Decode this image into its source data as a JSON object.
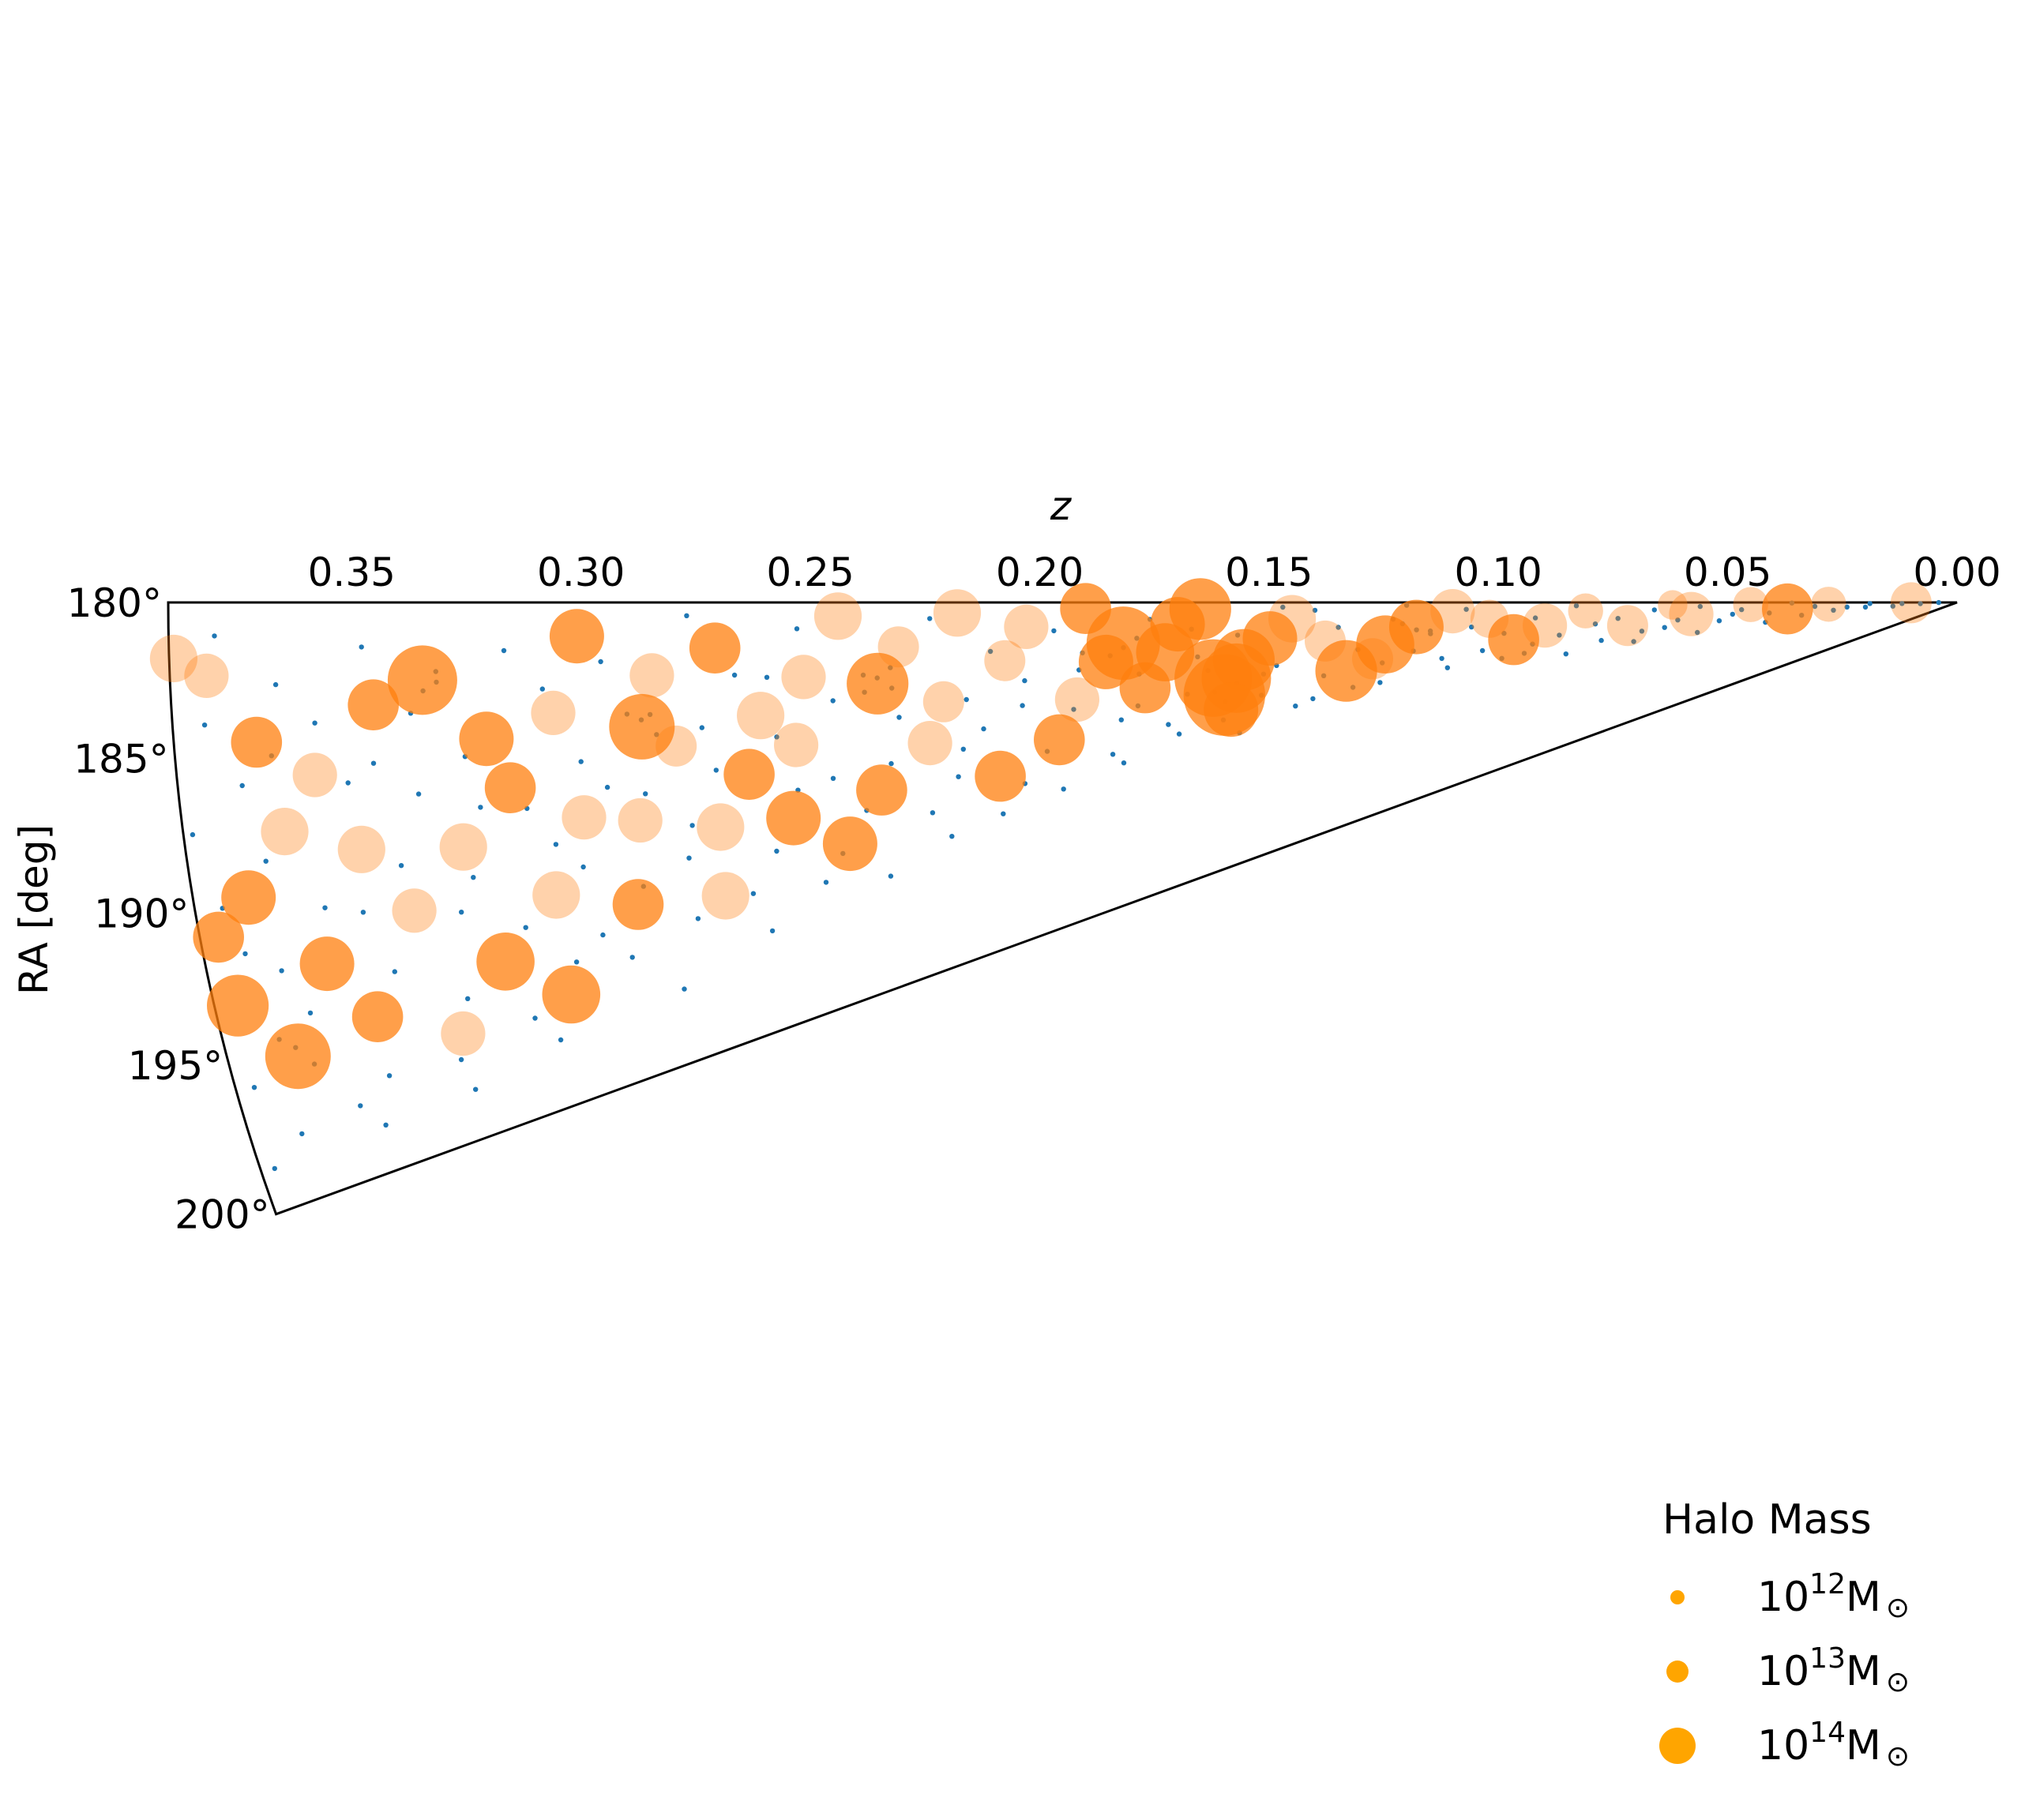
{
  "chart_data": {
    "type": "scatter",
    "projection": "polar-wedge",
    "xlabel": "z",
    "ylabel": "RA [deg]",
    "z_range": [
      0.0,
      0.39
    ],
    "ra_range": [
      180,
      200
    ],
    "z_ticks": [
      "0.35",
      "0.30",
      "0.25",
      "0.20",
      "0.15",
      "0.10",
      "0.05",
      "0.00"
    ],
    "ra_ticks": [
      "180°",
      "185°",
      "190°",
      "195°",
      "200°"
    ],
    "grid": false,
    "legend_position": "bottom-right",
    "legend": {
      "title": "Halo Mass",
      "entries": [
        {
          "base": "10",
          "exp": "12",
          "unit": "M",
          "sym": "⊙",
          "mass_exp": 12
        },
        {
          "base": "10",
          "exp": "13",
          "unit": "M",
          "sym": "⊙",
          "mass_exp": 13
        },
        {
          "base": "10",
          "exp": "14",
          "unit": "M",
          "sym": "⊙",
          "mass_exp": 14
        }
      ]
    },
    "colors": {
      "galaxies": "#1f77b4",
      "halos": "#ff7f0e",
      "legend_marker": "#ffa500"
    },
    "series": [
      {
        "kind": "halos",
        "points": [
          [
            0.01,
            180.4,
            13.2
          ],
          [
            0.028,
            180.8,
            13.0
          ],
          [
            0.037,
            182.2,
            13.5
          ],
          [
            0.045,
            180.6,
            13.0
          ],
          [
            0.058,
            182.5,
            13.3
          ],
          [
            0.062,
            180.5,
            12.8
          ],
          [
            0.072,
            184.0,
            13.2
          ],
          [
            0.081,
            181.3,
            13.0
          ],
          [
            0.09,
            183.2,
            13.3
          ],
          [
            0.097,
            184.8,
            13.5
          ],
          [
            0.102,
            182.0,
            13.1
          ],
          [
            0.11,
            181.0,
            13.3
          ],
          [
            0.118,
            182.6,
            13.6
          ],
          [
            0.125,
            184.2,
            13.7
          ],
          [
            0.128,
            185.5,
            13.2
          ],
          [
            0.134,
            186.4,
            13.8
          ],
          [
            0.138,
            183.5,
            13.2
          ],
          [
            0.145,
            181.4,
            13.4
          ],
          [
            0.15,
            183.0,
            13.6
          ],
          [
            0.156,
            184.6,
            13.8
          ],
          [
            0.158,
            186.0,
            14.0
          ],
          [
            0.161,
            187.2,
            14.3
          ],
          [
            0.163,
            185.8,
            14.2
          ],
          [
            0.16,
            188.4,
            13.6
          ],
          [
            0.165,
            180.5,
            13.8
          ],
          [
            0.17,
            181.6,
            13.6
          ],
          [
            0.173,
            183.6,
            13.7
          ],
          [
            0.178,
            186.0,
            13.5
          ],
          [
            0.182,
            182.8,
            14.1
          ],
          [
            0.186,
            184.0,
            13.6
          ],
          [
            0.19,
            180.4,
            13.5
          ],
          [
            0.193,
            186.3,
            13.3
          ],
          [
            0.198,
            188.7,
            13.5
          ],
          [
            0.203,
            181.5,
            13.3
          ],
          [
            0.208,
            183.5,
            13.2
          ],
          [
            0.212,
            190.3,
            13.5
          ],
          [
            0.218,
            180.6,
            13.4
          ],
          [
            0.222,
            185.6,
            13.2
          ],
          [
            0.226,
            187.8,
            13.3
          ],
          [
            0.231,
            182.4,
            13.2
          ],
          [
            0.236,
            184.3,
            13.8
          ],
          [
            0.238,
            189.9,
            13.5
          ],
          [
            0.244,
            180.7,
            13.4
          ],
          [
            0.247,
            192.3,
            13.6
          ],
          [
            0.252,
            183.7,
            13.3
          ],
          [
            0.255,
            187.0,
            13.3
          ],
          [
            0.258,
            190.5,
            13.6
          ],
          [
            0.262,
            185.4,
            13.4
          ],
          [
            0.266,
            188.1,
            13.5
          ],
          [
            0.271,
            182.1,
            13.5
          ],
          [
            0.274,
            190.3,
            13.4
          ],
          [
            0.276,
            193.4,
            13.4
          ],
          [
            0.281,
            186.4,
            13.2
          ],
          [
            0.285,
            183.2,
            13.3
          ],
          [
            0.288,
            185.4,
            13.9
          ],
          [
            0.291,
            189.4,
            13.3
          ],
          [
            0.295,
            192.9,
            13.5
          ],
          [
            0.301,
            181.4,
            13.6
          ],
          [
            0.303,
            188.9,
            13.3
          ],
          [
            0.307,
            184.5,
            13.3
          ],
          [
            0.312,
            191.8,
            13.4
          ],
          [
            0.314,
            195.8,
            13.7
          ],
          [
            0.318,
            187.3,
            13.5
          ],
          [
            0.322,
            185.3,
            13.6
          ],
          [
            0.326,
            193.9,
            13.7
          ],
          [
            0.33,
            189.3,
            13.4
          ],
          [
            0.335,
            182.9,
            14.0
          ],
          [
            0.339,
            196.1,
            13.3
          ],
          [
            0.343,
            191.3,
            13.3
          ],
          [
            0.346,
            183.7,
            13.5
          ],
          [
            0.352,
            188.8,
            13.4
          ],
          [
            0.356,
            194.7,
            13.5
          ],
          [
            0.36,
            186.0,
            13.3
          ],
          [
            0.364,
            192.5,
            13.6
          ],
          [
            0.368,
            187.8,
            13.4
          ],
          [
            0.372,
            184.7,
            13.5
          ],
          [
            0.375,
            195.3,
            13.9
          ],
          [
            0.378,
            189.8,
            13.6
          ],
          [
            0.382,
            182.4,
            13.3
          ],
          [
            0.385,
            193.2,
            13.8
          ],
          [
            0.389,
            181.8,
            13.4
          ],
          [
            0.386,
            190.9,
            13.5
          ]
        ]
      },
      {
        "kind": "galaxies",
        "points": [
          [
            0.004,
            180.3
          ],
          [
            0.012,
            181.1
          ],
          [
            0.019,
            180.7
          ],
          [
            0.024,
            182.4
          ],
          [
            0.031,
            181.6
          ],
          [
            0.036,
            180.2
          ],
          [
            0.041,
            183.2
          ],
          [
            0.047,
            181.9
          ],
          [
            0.052,
            184.4
          ],
          [
            0.056,
            180.9
          ],
          [
            0.061,
            183.6
          ],
          [
            0.066,
            181.4
          ],
          [
            0.069,
            185.2
          ],
          [
            0.074,
            182.7
          ],
          [
            0.078,
            186.1
          ],
          [
            0.083,
            180.5
          ],
          [
            0.087,
            184.7
          ],
          [
            0.092,
            182.1
          ],
          [
            0.095,
            186.7
          ],
          [
            0.099,
            183.9
          ],
          [
            0.104,
            185.8
          ],
          [
            0.107,
            180.8
          ],
          [
            0.112,
            187.3
          ],
          [
            0.115,
            183.1
          ],
          [
            0.119,
            185.1
          ],
          [
            0.123,
            181.7
          ],
          [
            0.127,
            187.9
          ],
          [
            0.131,
            184.5
          ],
          [
            0.135,
            182.3
          ],
          [
            0.139,
            186.6
          ],
          [
            0.142,
            188.5
          ],
          [
            0.147,
            180.4
          ],
          [
            0.149,
            185.3
          ],
          [
            0.153,
            187.6
          ],
          [
            0.157,
            182.6
          ],
          [
            0.162,
            189.1
          ],
          [
            0.166,
            184.1
          ],
          [
            0.169,
            186.8
          ],
          [
            0.172,
            189.6
          ],
          [
            0.176,
            181.2
          ],
          [
            0.179,
            185.0
          ],
          [
            0.184,
            188.0
          ],
          [
            0.187,
            190.2
          ],
          [
            0.191,
            183.3
          ],
          [
            0.194,
            186.9
          ],
          [
            0.197,
            181.8
          ],
          [
            0.201,
            189.3
          ],
          [
            0.204,
            184.8
          ],
          [
            0.207,
            191.0
          ],
          [
            0.211,
            182.9
          ],
          [
            0.214,
            187.4
          ],
          [
            0.217,
            185.6
          ],
          [
            0.221,
            189.9
          ],
          [
            0.224,
            180.9
          ],
          [
            0.228,
            191.6
          ],
          [
            0.232,
            186.2
          ],
          [
            0.235,
            188.6
          ],
          [
            0.239,
            183.8
          ],
          [
            0.242,
            190.8
          ],
          [
            0.246,
            185.0
          ],
          [
            0.249,
            192.7
          ],
          [
            0.253,
            181.3
          ],
          [
            0.256,
            189.2
          ],
          [
            0.259,
            186.5
          ],
          [
            0.263,
            191.9
          ],
          [
            0.267,
            183.4
          ],
          [
            0.27,
            193.6
          ],
          [
            0.273,
            187.7
          ],
          [
            0.277,
            180.6
          ],
          [
            0.28,
            190.0
          ],
          [
            0.283,
            194.1
          ],
          [
            0.286,
            184.9
          ],
          [
            0.289,
            188.3
          ],
          [
            0.293,
            192.2
          ],
          [
            0.296,
            182.5
          ],
          [
            0.299,
            195.0
          ],
          [
            0.302,
            186.6
          ],
          [
            0.305,
            190.9
          ],
          [
            0.309,
            183.5
          ],
          [
            0.311,
            194.6
          ],
          [
            0.315,
            188.2
          ],
          [
            0.317,
            181.9
          ],
          [
            0.32,
            192.8
          ],
          [
            0.323,
            196.3
          ],
          [
            0.327,
            185.9
          ],
          [
            0.329,
            190.5
          ],
          [
            0.332,
            183.0
          ],
          [
            0.336,
            194.9
          ],
          [
            0.338,
            187.1
          ],
          [
            0.341,
            197.0
          ],
          [
            0.344,
            189.6
          ],
          [
            0.348,
            181.6
          ],
          [
            0.35,
            193.3
          ],
          [
            0.353,
            186.4
          ],
          [
            0.357,
            196.8
          ],
          [
            0.359,
            184.2
          ],
          [
            0.362,
            190.6
          ],
          [
            0.365,
            197.5
          ],
          [
            0.367,
            182.8
          ],
          [
            0.37,
            194.0
          ],
          [
            0.373,
            188.7
          ],
          [
            0.376,
            186.1
          ],
          [
            0.379,
            197.8
          ],
          [
            0.381,
            191.6
          ],
          [
            0.383,
            184.0
          ],
          [
            0.386,
            195.9
          ],
          [
            0.388,
            187.5
          ],
          [
            0.387,
            198.6
          ],
          [
            0.384,
            190.0
          ],
          [
            0.38,
            181.1
          ],
          [
            0.374,
            192.4
          ],
          [
            0.369,
            185.2
          ],
          [
            0.361,
            198.4
          ],
          [
            0.354,
            191.0
          ],
          [
            0.347,
            185.8
          ],
          [
            0.34,
            198.2
          ],
          [
            0.333,
            191.7
          ],
          [
            0.325,
            187.9
          ],
          [
            0.319,
            197.4
          ],
          [
            0.31,
            189.8
          ],
          [
            0.304,
            193.8
          ],
          [
            0.297,
            187.8
          ],
          [
            0.29,
            196.9
          ],
          [
            0.282,
            191.4
          ],
          [
            0.275,
            185.7
          ],
          [
            0.268,
            195.5
          ],
          [
            0.26,
            183.6
          ],
          [
            0.254,
            193.9
          ],
          [
            0.248,
            188.9
          ],
          [
            0.24,
            194.4
          ],
          [
            0.233,
            184.6
          ],
          [
            0.225,
            193.1
          ],
          [
            0.219,
            188.4
          ],
          [
            0.213,
            192.5
          ],
          [
            0.205,
            186.3
          ],
          [
            0.199,
            191.8
          ],
          [
            0.192,
            184.4
          ],
          [
            0.185,
            190.9
          ],
          [
            0.18,
            187.2
          ],
          [
            0.174,
            188.8
          ],
          [
            0.167,
            182.0
          ],
          [
            0.159,
            190.3
          ],
          [
            0.152,
            185.9
          ],
          [
            0.146,
            188.9
          ],
          [
            0.14,
            180.7
          ],
          [
            0.133,
            188.0
          ],
          [
            0.126,
            186.0
          ],
          [
            0.12,
            180.3
          ],
          [
            0.113,
            186.2
          ],
          [
            0.106,
            182.9
          ],
          [
            0.1,
            187.0
          ],
          [
            0.093,
            185.6
          ],
          [
            0.086,
            187.5
          ],
          [
            0.079,
            183.4
          ],
          [
            0.071,
            186.9
          ],
          [
            0.064,
            184.9
          ],
          [
            0.057,
            186.6
          ],
          [
            0.049,
            183.0
          ],
          [
            0.042,
            185.9
          ],
          [
            0.034,
            184.7
          ],
          [
            0.027,
            183.6
          ],
          [
            0.02,
            182.9
          ],
          [
            0.014,
            183.3
          ],
          [
            0.008,
            181.9
          ],
          [
            0.163,
            186.9
          ],
          [
            0.161,
            187.7
          ],
          [
            0.158,
            186.4
          ],
          [
            0.164,
            185.2
          ],
          [
            0.182,
            183.1
          ],
          [
            0.179,
            182.5
          ],
          [
            0.185,
            183.6
          ],
          [
            0.288,
            185.1
          ],
          [
            0.285,
            185.8
          ],
          [
            0.291,
            184.8
          ],
          [
            0.335,
            183.3
          ],
          [
            0.332,
            182.6
          ],
          [
            0.338,
            184.1
          ],
          [
            0.236,
            184.0
          ],
          [
            0.239,
            184.7
          ],
          [
            0.233,
            183.5
          ],
          [
            0.118,
            182.9
          ],
          [
            0.121,
            182.2
          ],
          [
            0.115,
            183.4
          ],
          [
            0.375,
            195.0
          ],
          [
            0.372,
            195.7
          ],
          [
            0.378,
            194.6
          ]
        ]
      }
    ]
  }
}
